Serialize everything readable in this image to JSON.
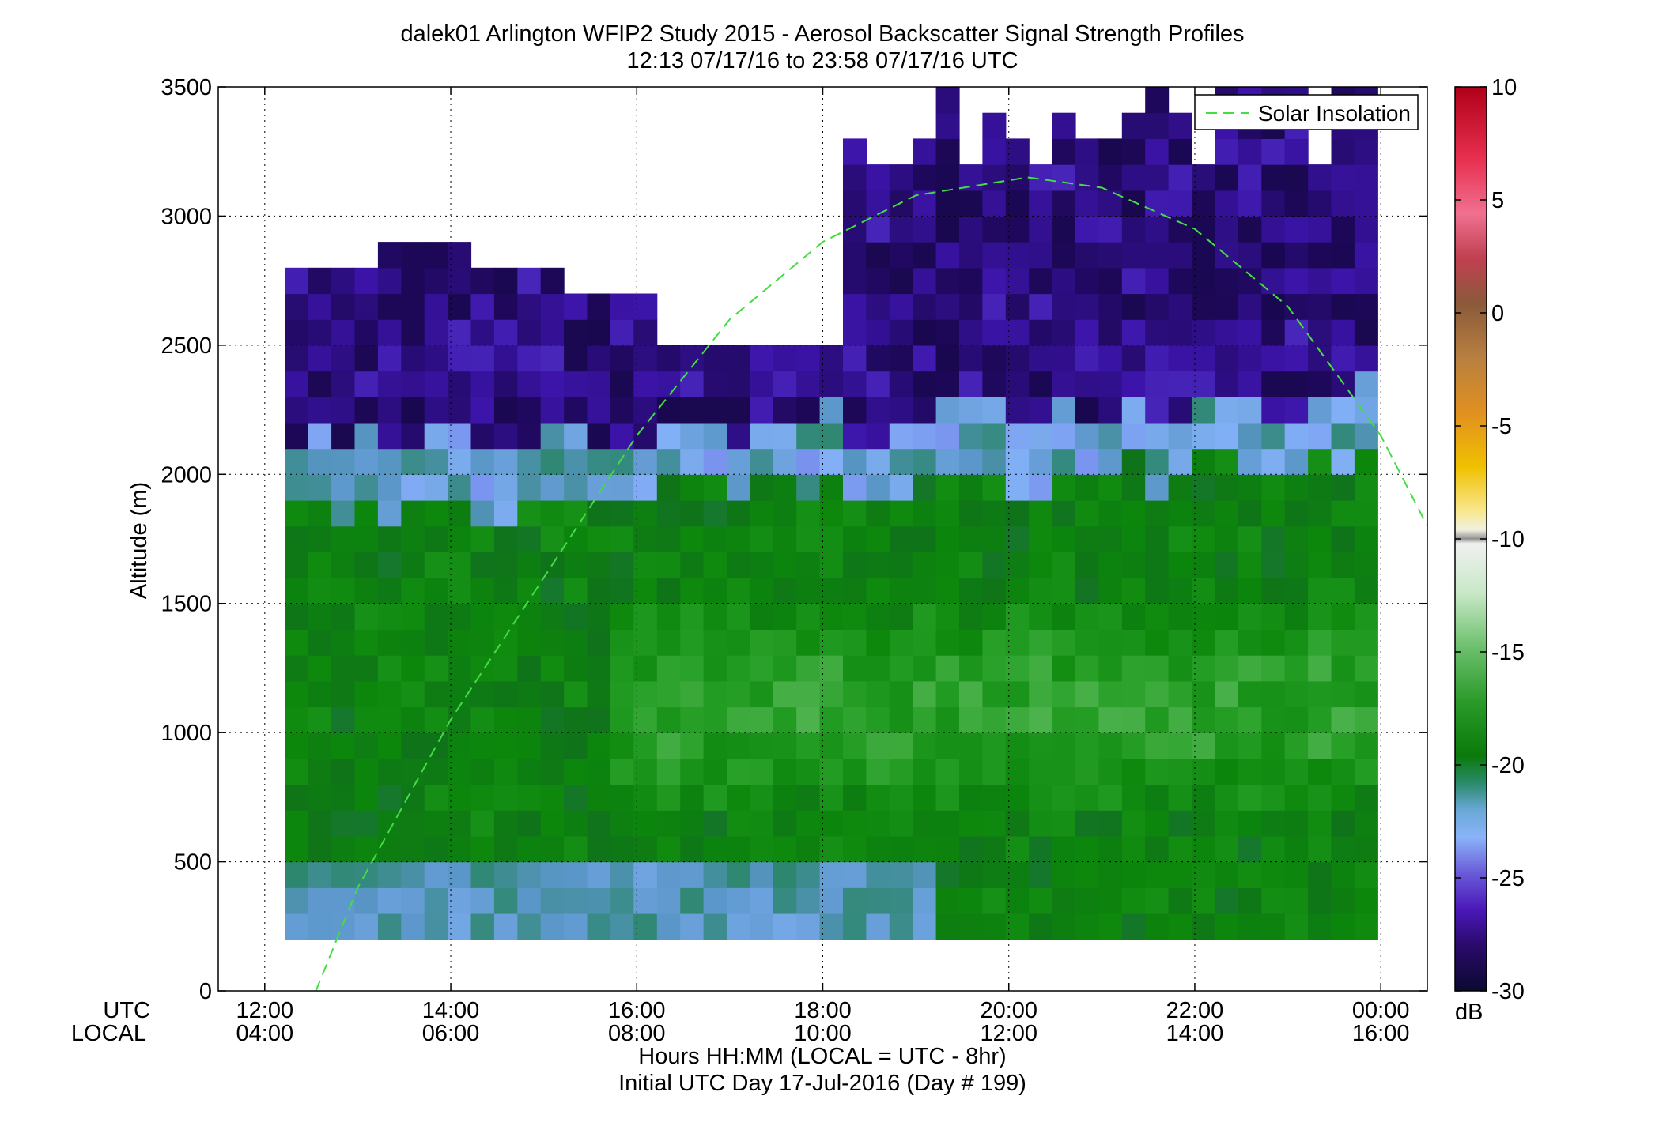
{
  "chart_data": {
    "type": "heatmap",
    "title_line1": "dalek01 Arlington WFIP2 Study 2015 - Aerosol Backscatter Signal Strength Profiles",
    "title_line2": "12:13 07/17/16 to 23:58 07/17/16  UTC",
    "ylabel": "Altitude (m)",
    "xlabel": "Hours HH:MM  (LOCAL = UTC - 8hr)",
    "xlabel2": "Initial UTC Day 17-Jul-2016 (Day # 199)",
    "x_row_utc_label": "UTC",
    "x_row_local_label": "LOCAL",
    "xlim_hours_utc": [
      11.5,
      24.5
    ],
    "ylim_m": [
      0,
      3500
    ],
    "grid": true,
    "x_ticks": [
      {
        "utc": "12:00",
        "local": "04:00",
        "hour": 12
      },
      {
        "utc": "14:00",
        "local": "06:00",
        "hour": 14
      },
      {
        "utc": "16:00",
        "local": "08:00",
        "hour": 16
      },
      {
        "utc": "18:00",
        "local": "10:00",
        "hour": 18
      },
      {
        "utc": "20:00",
        "local": "12:00",
        "hour": 20
      },
      {
        "utc": "22:00",
        "local": "14:00",
        "hour": 22
      },
      {
        "utc": "00:00",
        "local": "16:00",
        "hour": 24
      }
    ],
    "y_ticks": [
      0,
      500,
      1000,
      1500,
      2000,
      2500,
      3000,
      3500
    ],
    "colorbar": {
      "label": "dB",
      "range": [
        -30,
        10
      ],
      "ticks": [
        10,
        5,
        0,
        -5,
        -10,
        -15,
        -20,
        -25,
        -30
      ]
    },
    "legend": {
      "label": "Solar Insolation",
      "position": "top-right",
      "color": "#44dd44"
    },
    "solar_insolation_curve": {
      "x_hours_utc": [
        12.55,
        13.0,
        14.0,
        15.0,
        16.0,
        17.0,
        18.0,
        19.0,
        20.2,
        21.0,
        22.0,
        23.0,
        24.0,
        24.5
      ],
      "y_m": [
        0,
        400,
        1050,
        1600,
        2150,
        2600,
        2900,
        3080,
        3150,
        3110,
        2950,
        2650,
        2150,
        1800
      ]
    },
    "heatmap_summary": {
      "time_range_utc": [
        "12:13",
        "23:58"
      ],
      "altitude_range_m": [
        200,
        3500
      ],
      "typical_db_below_boundary_layer": -17,
      "typical_db_boundary_layer_top": -22,
      "typical_db_above_boundary_layer": -27,
      "boundary_layer_top_m_morning": 1900,
      "boundary_layer_top_m_afternoon": 2100
    },
    "colors": {
      "strong_aerosol": "#0b8a0b",
      "light_aerosol": "#58b858",
      "transition": "#7aaaf0",
      "clear_air": "#2a1075",
      "no_data": "#ffffff"
    }
  }
}
